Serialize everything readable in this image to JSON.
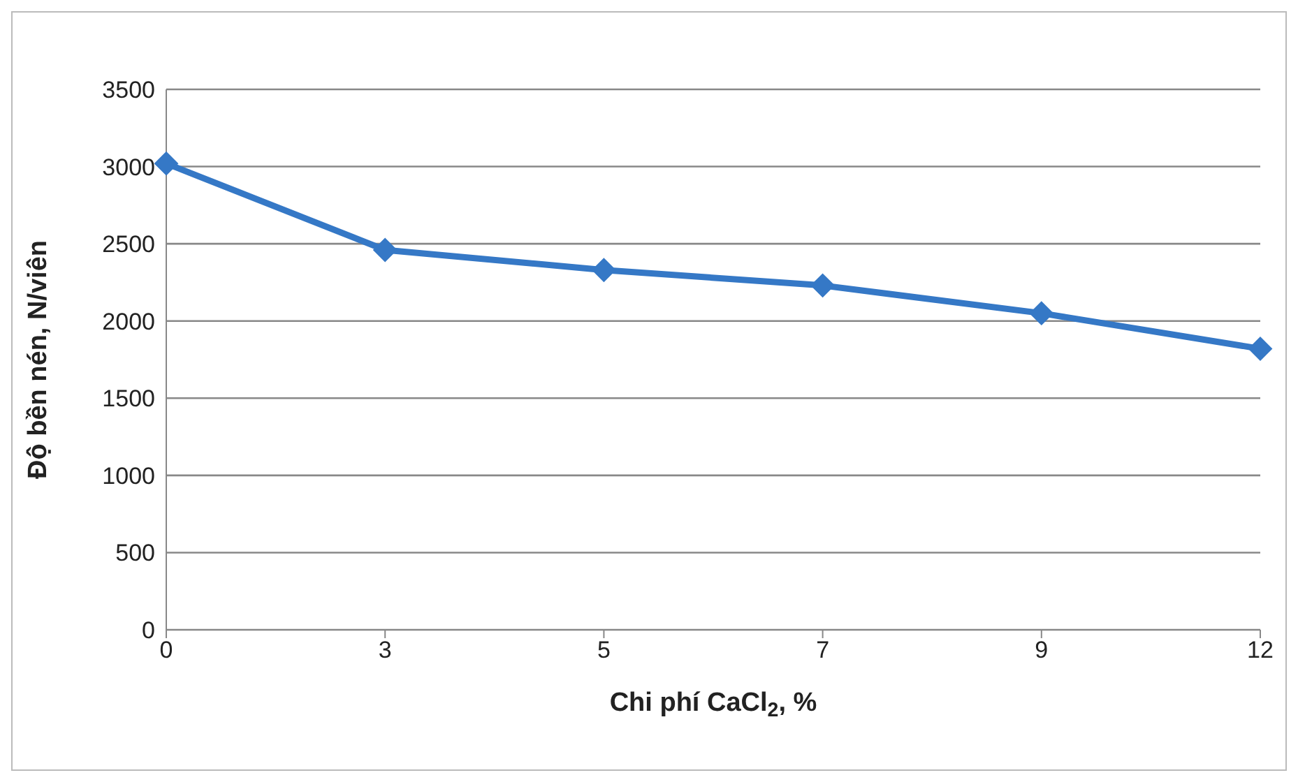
{
  "chart_data": {
    "type": "line",
    "xlabel": "Chi phí CaCl$_{2}$, %",
    "ylabel": "Độ bền nén, N/viên",
    "categories": [
      "0",
      "3",
      "5",
      "7",
      "9",
      "12"
    ],
    "series": [
      {
        "color": "#3578c6",
        "values": [
          3020,
          2460,
          2330,
          2230,
          2050,
          1820
        ]
      }
    ],
    "ylim": [
      0,
      3500
    ],
    "yticks": [
      0,
      500,
      1000,
      1500,
      2000,
      2500,
      3000,
      3500
    ],
    "grid": "y",
    "marker": "diamond",
    "line_style": "solid",
    "legend": false
  }
}
